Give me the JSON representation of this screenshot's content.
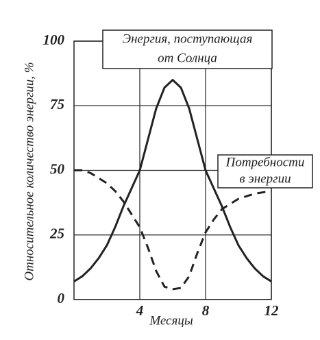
{
  "chart_data": {
    "type": "line",
    "ylabel": "Относительное количество энергии, %",
    "xlabel": "Месяцы",
    "x": [
      0,
      0.5,
      1,
      1.5,
      2,
      2.5,
      3,
      3.5,
      4,
      4.5,
      5,
      5.5,
      6,
      6.5,
      7,
      7.5,
      8,
      8.5,
      9,
      9.5,
      10,
      10.5,
      11,
      11.5,
      12
    ],
    "series": [
      {
        "color": "#222222",
        "style": "solid",
        "values": [
          7,
          9,
          12,
          16,
          21,
          28,
          36,
          43,
          50,
          62,
          74,
          82,
          85,
          82,
          74,
          62,
          50,
          43,
          36,
          28,
          21,
          16,
          12,
          9,
          7
        ]
      },
      {
        "color": "#222222",
        "style": "dashed",
        "values": [
          50,
          50,
          49,
          47,
          45,
          42,
          38,
          33,
          28,
          20,
          11,
          5,
          4,
          4.5,
          9,
          18,
          26,
          31,
          35,
          37,
          39,
          40,
          41,
          41.5,
          42
        ]
      }
    ],
    "annotations": [
      {
        "lines": [
          "Энергия, поступающая",
          "от Солнца"
        ]
      },
      {
        "lines": [
          "Потребности",
          "в энергии"
        ]
      }
    ],
    "xlim": [
      0,
      12
    ],
    "xticks": [
      4,
      8,
      12
    ],
    "ylim": [
      0,
      100
    ],
    "yticks": [
      0,
      25,
      50,
      75,
      100
    ],
    "grid": true
  }
}
